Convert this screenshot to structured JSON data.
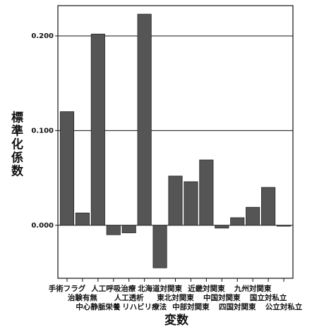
{
  "chart_data": {
    "type": "bar",
    "ylabel": "標準化係数",
    "xlabel": "変数",
    "categories": [
      "手術フラグ",
      "治験有無",
      "中心静脈栄養",
      "人工呼吸治療",
      "人工透析",
      "リハビリ療法",
      "北海道対関東",
      "東北対関東",
      "中部対関東",
      "近畿対関東",
      "中国対関東",
      "四国対関東",
      "九州対関東",
      "国立対私立",
      "公立対私立"
    ],
    "values": [
      0.12,
      0.013,
      0.202,
      -0.01,
      -0.008,
      0.223,
      -0.045,
      0.052,
      0.046,
      0.069,
      -0.003,
      0.008,
      0.019,
      0.04,
      -0.001
    ],
    "color": "#555555",
    "ylim": [
      -0.056,
      0.232
    ],
    "yticks": [
      {
        "value": 0,
        "label": "0.000"
      },
      {
        "value": 0.1,
        "label": "0.100"
      },
      {
        "value": 0.2,
        "label": "0.200"
      }
    ],
    "grid": true
  }
}
